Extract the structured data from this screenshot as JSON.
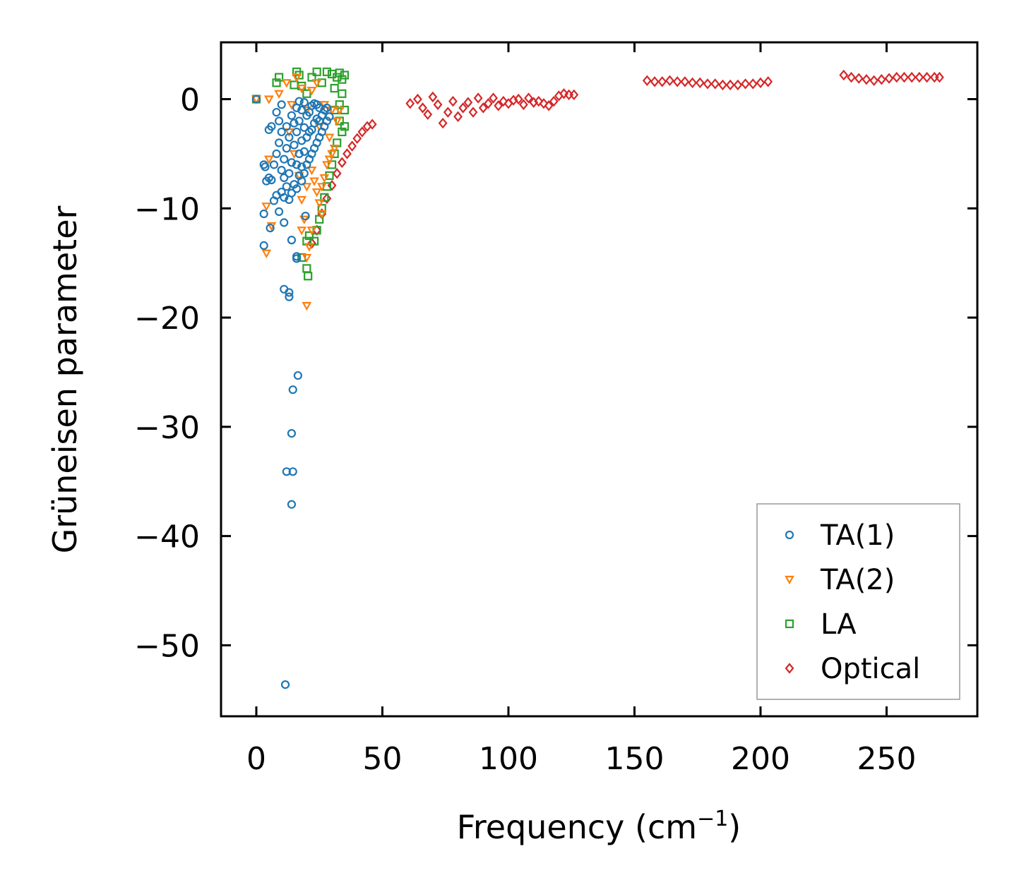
{
  "chart_data": {
    "type": "scatter",
    "title": "",
    "xlabel": "Frequency (cm",
    "xlabel_sup": "−1",
    "xlabel_end": ")",
    "ylabel": "Grüneisen parameter",
    "xlim": [
      -14,
      286
    ],
    "ylim": [
      -56.5,
      5.2
    ],
    "xticks": [
      0,
      50,
      100,
      150,
      200,
      250
    ],
    "xtick_labels": [
      "0",
      "50",
      "100",
      "150",
      "200",
      "250"
    ],
    "yticks": [
      0,
      -10,
      -20,
      -30,
      -40,
      -50
    ],
    "ytick_labels": [
      "0",
      "−10",
      "−20",
      "−30",
      "−40",
      "−50"
    ],
    "legend_position": "lower-right",
    "series": [
      {
        "name": "TA(1)",
        "marker": "circle",
        "color": "#1f77b4",
        "points": [
          [
            0,
            0
          ],
          [
            3,
            -6
          ],
          [
            3.5,
            -6.2
          ],
          [
            4,
            -7.5
          ],
          [
            5,
            -2.8
          ],
          [
            5,
            -7.2
          ],
          [
            6,
            -2.5
          ],
          [
            6,
            -7.4
          ],
          [
            7,
            -9.3
          ],
          [
            7,
            -6.0
          ],
          [
            8,
            -8.8
          ],
          [
            8,
            -5.0
          ],
          [
            8,
            -1.2
          ],
          [
            9,
            -10.3
          ],
          [
            9,
            -4.0
          ],
          [
            9,
            -2.0
          ],
          [
            10,
            -8.5
          ],
          [
            10,
            -6.5
          ],
          [
            10,
            -3.0
          ],
          [
            10,
            -0.5
          ],
          [
            11,
            -9.0
          ],
          [
            11,
            -7.2
          ],
          [
            11,
            -5.5
          ],
          [
            12,
            -8.0
          ],
          [
            12,
            -4.5
          ],
          [
            12,
            -2.5
          ],
          [
            13,
            -9.2
          ],
          [
            13,
            -6.8
          ],
          [
            13,
            -3.5
          ],
          [
            14,
            -8.6
          ],
          [
            14,
            -5.8
          ],
          [
            14,
            -1.5
          ],
          [
            15,
            -7.8
          ],
          [
            15,
            -4.2
          ],
          [
            15,
            -2.2
          ],
          [
            16,
            -8.2
          ],
          [
            16,
            -6.0
          ],
          [
            16,
            -3.0
          ],
          [
            16,
            -0.8
          ],
          [
            17,
            -7.0
          ],
          [
            17,
            -5.0
          ],
          [
            17,
            -2.0
          ],
          [
            17,
            -0.2
          ],
          [
            18,
            -7.5
          ],
          [
            18,
            -6.2
          ],
          [
            18,
            -3.8
          ],
          [
            18,
            -1.0
          ],
          [
            19,
            -6.8
          ],
          [
            19,
            -4.8
          ],
          [
            19,
            -2.6
          ],
          [
            19,
            -0.3
          ],
          [
            20,
            -6.0
          ],
          [
            20,
            -3.5
          ],
          [
            20,
            -1.5
          ],
          [
            21,
            -5.5
          ],
          [
            21,
            -3.0
          ],
          [
            21,
            -1.2
          ],
          [
            22,
            -5.0
          ],
          [
            22,
            -2.8
          ],
          [
            22,
            -0.6
          ],
          [
            23,
            -4.5
          ],
          [
            23,
            -2.2
          ],
          [
            23,
            -0.4
          ],
          [
            24,
            -4.0
          ],
          [
            24,
            -1.8
          ],
          [
            24,
            -0.5
          ],
          [
            25,
            -3.5
          ],
          [
            25,
            -2.0
          ],
          [
            25,
            -0.8
          ],
          [
            26,
            -3.0
          ],
          [
            26,
            -1.5
          ],
          [
            27,
            -2.5
          ],
          [
            27,
            -1.0
          ],
          [
            28,
            -2.0
          ],
          [
            28,
            -0.8
          ],
          [
            29,
            -1.6
          ],
          [
            3,
            -10.5
          ],
          [
            3,
            -13.4
          ],
          [
            5.5,
            -11.8
          ],
          [
            11,
            -11.3
          ],
          [
            14,
            -12.9
          ],
          [
            16,
            -14.6
          ],
          [
            16,
            -14.4
          ],
          [
            19.5,
            -10.7
          ],
          [
            11,
            -17.4
          ],
          [
            13,
            -17.7
          ],
          [
            13,
            -18.1
          ],
          [
            16.5,
            -25.3
          ],
          [
            14.5,
            -26.6
          ],
          [
            14,
            -30.6
          ],
          [
            12,
            -34.1
          ],
          [
            14.5,
            -34.1
          ],
          [
            14,
            -37.1
          ],
          [
            11.5,
            -53.6
          ]
        ]
      },
      {
        "name": "TA(2)",
        "marker": "triangle-down",
        "color": "#ff7f0e",
        "points": [
          [
            0,
            0
          ],
          [
            5,
            0
          ],
          [
            9,
            0.5
          ],
          [
            12,
            1.5
          ],
          [
            14,
            -0.5
          ],
          [
            16,
            2.0
          ],
          [
            18,
            1.0
          ],
          [
            20,
            -1.0
          ],
          [
            22,
            0.8
          ],
          [
            24,
            1.5
          ],
          [
            25,
            -2.5
          ],
          [
            27,
            -0.5
          ],
          [
            29,
            -3.5
          ],
          [
            30,
            -1.0
          ],
          [
            31,
            -4.5
          ],
          [
            32,
            -2.0
          ],
          [
            33,
            -1.0
          ],
          [
            22,
            -6.5
          ],
          [
            23,
            -7.5
          ],
          [
            24,
            -8.5
          ],
          [
            25,
            -9.5
          ],
          [
            26,
            -10.5
          ],
          [
            22,
            -12.0
          ],
          [
            21,
            -13.5
          ],
          [
            20,
            -14.5
          ],
          [
            18,
            -12.0
          ],
          [
            19,
            -11.0
          ],
          [
            18,
            -9.2
          ],
          [
            20,
            -8.0
          ],
          [
            5,
            -5.5
          ],
          [
            4,
            -9.8
          ],
          [
            4,
            -14.1
          ],
          [
            6,
            -11.6
          ],
          [
            20,
            -18.9
          ],
          [
            17,
            -7.0
          ],
          [
            15,
            -5.0
          ],
          [
            13,
            -3.0
          ],
          [
            28,
            -6.0
          ],
          [
            29,
            -5.5
          ],
          [
            30,
            -5.0
          ],
          [
            26,
            -8.0
          ],
          [
            27,
            -7.2
          ]
        ]
      },
      {
        "name": "LA",
        "marker": "square",
        "color": "#2ca02c",
        "points": [
          [
            0,
            0
          ],
          [
            8,
            1.5
          ],
          [
            9,
            2.0
          ],
          [
            15,
            1.3
          ],
          [
            16,
            2.5
          ],
          [
            17,
            2.2
          ],
          [
            18,
            1.2
          ],
          [
            20,
            0.5
          ],
          [
            22,
            2.0
          ],
          [
            24,
            2.5
          ],
          [
            26,
            1.5
          ],
          [
            28,
            2.5
          ],
          [
            30,
            2.3
          ],
          [
            31,
            1.0
          ],
          [
            32,
            2.0
          ],
          [
            33,
            2.4
          ],
          [
            34,
            1.8
          ],
          [
            35,
            2.2
          ],
          [
            31,
            -1.0
          ],
          [
            33,
            -2.0
          ],
          [
            34,
            -3.0
          ],
          [
            35,
            -2.5
          ],
          [
            32,
            -4.0
          ],
          [
            31,
            -5.0
          ],
          [
            30,
            -6.0
          ],
          [
            29,
            -7.0
          ],
          [
            28,
            -8.0
          ],
          [
            27,
            -9.0
          ],
          [
            26,
            -10.0
          ],
          [
            25,
            -11.0
          ],
          [
            24,
            -12.0
          ],
          [
            23,
            -13.0
          ],
          [
            21,
            -12.5
          ],
          [
            20,
            -13.0
          ],
          [
            20,
            -15.5
          ],
          [
            20.5,
            -16.2
          ],
          [
            18,
            -14.5
          ],
          [
            35,
            -1.0
          ],
          [
            34,
            0.5
          ],
          [
            33,
            -0.5
          ]
        ]
      },
      {
        "name": "Optical",
        "marker": "diamond",
        "color": "#d62728",
        "points": [
          [
            46,
            -2.3
          ],
          [
            44,
            -2.5
          ],
          [
            42,
            -3.0
          ],
          [
            40,
            -3.6
          ],
          [
            38,
            -4.3
          ],
          [
            36,
            -5.0
          ],
          [
            34,
            -5.8
          ],
          [
            32,
            -6.8
          ],
          [
            30,
            -7.9
          ],
          [
            28,
            -9.1
          ],
          [
            26,
            -10.5
          ],
          [
            24,
            -12.0
          ],
          [
            22,
            -13.2
          ],
          [
            61,
            -0.4
          ],
          [
            64,
            0.0
          ],
          [
            66,
            -0.8
          ],
          [
            68,
            -1.4
          ],
          [
            70,
            0.2
          ],
          [
            72,
            -0.5
          ],
          [
            74,
            -2.2
          ],
          [
            76,
            -1.2
          ],
          [
            78,
            -0.2
          ],
          [
            80,
            -1.6
          ],
          [
            82,
            -0.8
          ],
          [
            84,
            -0.3
          ],
          [
            86,
            -1.2
          ],
          [
            88,
            0.1
          ],
          [
            90,
            -0.8
          ],
          [
            92,
            -0.4
          ],
          [
            94,
            0.1
          ],
          [
            96,
            -0.6
          ],
          [
            98,
            -0.2
          ],
          [
            100,
            -0.4
          ],
          [
            102,
            -0.1
          ],
          [
            104,
            0.0
          ],
          [
            106,
            -0.5
          ],
          [
            108,
            0.1
          ],
          [
            110,
            -0.3
          ],
          [
            112,
            -0.2
          ],
          [
            114,
            -0.4
          ],
          [
            116,
            -0.6
          ],
          [
            118,
            -0.2
          ],
          [
            120,
            0.3
          ],
          [
            122,
            0.5
          ],
          [
            124,
            0.4
          ],
          [
            126,
            0.4
          ],
          [
            155,
            1.7
          ],
          [
            158,
            1.6
          ],
          [
            161,
            1.6
          ],
          [
            164,
            1.7
          ],
          [
            167,
            1.6
          ],
          [
            170,
            1.6
          ],
          [
            173,
            1.5
          ],
          [
            176,
            1.5
          ],
          [
            179,
            1.4
          ],
          [
            182,
            1.4
          ],
          [
            185,
            1.3
          ],
          [
            188,
            1.3
          ],
          [
            191,
            1.3
          ],
          [
            194,
            1.4
          ],
          [
            197,
            1.4
          ],
          [
            200,
            1.5
          ],
          [
            203,
            1.6
          ],
          [
            233,
            2.2
          ],
          [
            236,
            2.0
          ],
          [
            239,
            1.9
          ],
          [
            242,
            1.8
          ],
          [
            245,
            1.7
          ],
          [
            248,
            1.8
          ],
          [
            251,
            1.9
          ],
          [
            254,
            2.0
          ],
          [
            257,
            2.0
          ],
          [
            260,
            2.0
          ],
          [
            263,
            2.0
          ],
          [
            266,
            2.0
          ],
          [
            269,
            2.0
          ],
          [
            271,
            2.0
          ]
        ]
      }
    ]
  }
}
